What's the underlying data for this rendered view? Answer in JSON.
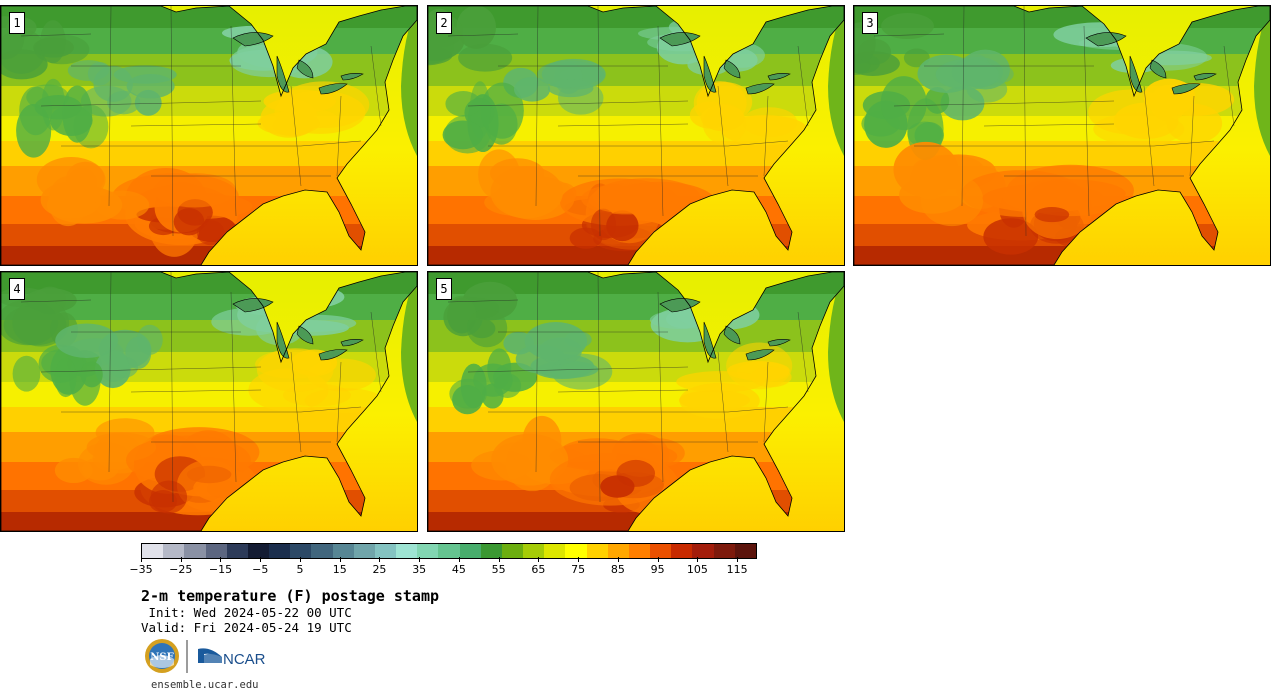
{
  "title": "2-m temperature (F) postage stamp",
  "init_line": " Init: Wed 2024-05-22 00 UTC",
  "valid_line": "Valid: Fri 2024-05-24 19 UTC",
  "website": "ensemble.ucar.edu",
  "logos": {
    "nsf_text": "NSF",
    "ncar_text": "NCAR"
  },
  "members": [
    {
      "label": "1"
    },
    {
      "label": "2"
    },
    {
      "label": "3"
    },
    {
      "label": "4"
    },
    {
      "label": "5"
    }
  ],
  "colorbar": {
    "min": -35,
    "max": 120,
    "step": 5,
    "tick_labels": [
      "−35",
      "−25",
      "−15",
      "−5",
      "5",
      "15",
      "25",
      "35",
      "45",
      "55",
      "65",
      "75",
      "85",
      "95",
      "105",
      "115"
    ],
    "tick_values": [
      -35,
      -25,
      -15,
      -5,
      5,
      15,
      25,
      35,
      45,
      55,
      65,
      75,
      85,
      95,
      105,
      115
    ],
    "colors": [
      "#e1e2ea",
      "#b5b9c7",
      "#8a91a4",
      "#5c6680",
      "#2d3b59",
      "#141c33",
      "#1b2e4d",
      "#2c4966",
      "#41667d",
      "#578694",
      "#70a5aa",
      "#84c3c1",
      "#9ee4d3",
      "#82d6b2",
      "#65c490",
      "#48ad6c",
      "#3b9832",
      "#6cae0f",
      "#a5cc07",
      "#dde600",
      "#ffff00",
      "#ffd100",
      "#ffa700",
      "#ff7f00",
      "#ea5000",
      "#c82a00",
      "#a31d0b",
      "#7d1a0c",
      "#5c140c"
    ]
  }
}
